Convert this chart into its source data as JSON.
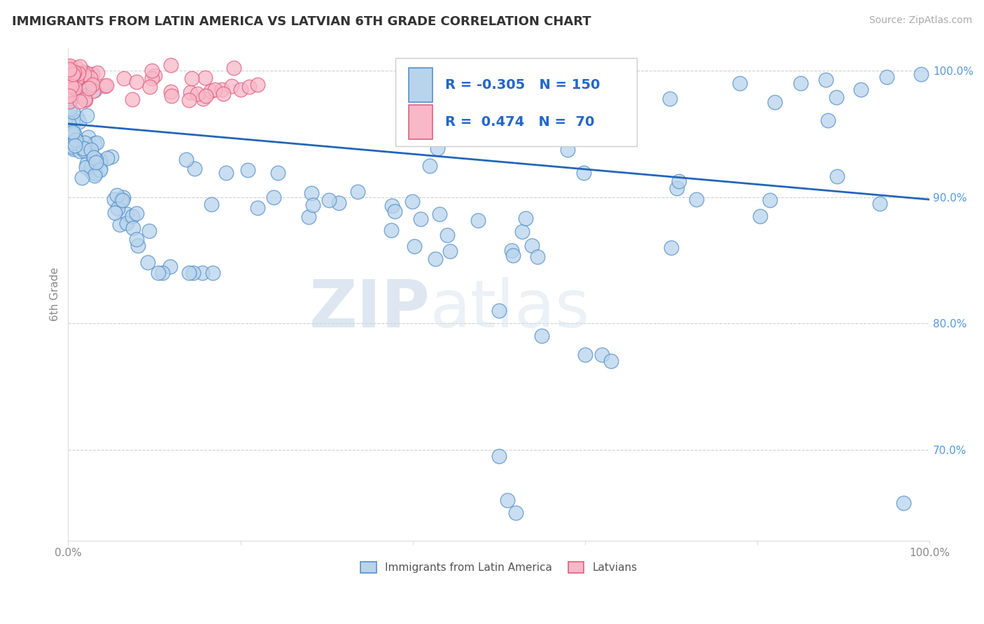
{
  "title": "IMMIGRANTS FROM LATIN AMERICA VS LATVIAN 6TH GRADE CORRELATION CHART",
  "source": "Source: ZipAtlas.com",
  "ylabel": "6th Grade",
  "x_min": 0.0,
  "x_max": 1.0,
  "y_min": 0.628,
  "y_max": 1.018,
  "y_ticks": [
    0.7,
    0.8,
    0.9,
    1.0
  ],
  "y_tick_labels": [
    "70.0%",
    "80.0%",
    "90.0%",
    "100.0%"
  ],
  "blue_color": "#b8d4ec",
  "blue_edge": "#5590cc",
  "pink_color": "#f8b8c8",
  "pink_edge": "#e06080",
  "line_color": "#2266bb",
  "grid_color": "#cccccc",
  "tick_color": "#5599dd",
  "watermark_zip": "ZIP",
  "watermark_atlas": "atlas",
  "legend_r_blue": "-0.305",
  "legend_n_blue": "150",
  "legend_r_pink": "0.474",
  "legend_n_pink": "70",
  "regression_x0": 0.0,
  "regression_x1": 1.0,
  "regression_y0": 0.958,
  "regression_y1": 0.898
}
